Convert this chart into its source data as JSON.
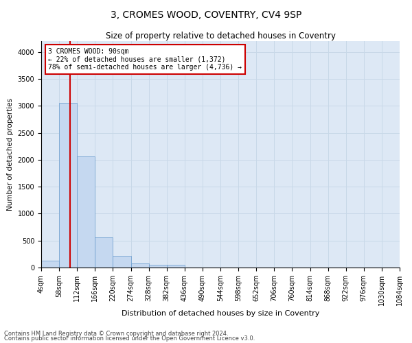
{
  "title": "3, CROMES WOOD, COVENTRY, CV4 9SP",
  "subtitle": "Size of property relative to detached houses in Coventry",
  "xlabel": "Distribution of detached houses by size in Coventry",
  "ylabel": "Number of detached properties",
  "bin_labels": [
    "4sqm",
    "58sqm",
    "112sqm",
    "166sqm",
    "220sqm",
    "274sqm",
    "328sqm",
    "382sqm",
    "436sqm",
    "490sqm",
    "544sqm",
    "598sqm",
    "652sqm",
    "706sqm",
    "760sqm",
    "814sqm",
    "868sqm",
    "922sqm",
    "976sqm",
    "1030sqm",
    "1084sqm"
  ],
  "bar_values": [
    130,
    3060,
    2060,
    560,
    215,
    75,
    50,
    50,
    0,
    0,
    0,
    0,
    0,
    0,
    0,
    0,
    0,
    0,
    0,
    0
  ],
  "bar_color": "#c5d8f0",
  "bar_edge_color": "#6699cc",
  "grid_color": "#c8d8e8",
  "background_color": "#dde8f5",
  "vline_color": "#cc0000",
  "annotation_title": "3 CROMES WOOD: 90sqm",
  "annotation_line1": "← 22% of detached houses are smaller (1,372)",
  "annotation_line2": "78% of semi-detached houses are larger (4,736) →",
  "annotation_box_color": "#ffffff",
  "annotation_border_color": "#cc0000",
  "ylim": [
    0,
    4200
  ],
  "yticks": [
    0,
    500,
    1000,
    1500,
    2000,
    2500,
    3000,
    3500,
    4000
  ],
  "footnote1": "Contains HM Land Registry data © Crown copyright and database right 2024.",
  "footnote2": "Contains public sector information licensed under the Open Government Licence v3.0.",
  "title_fontsize": 10,
  "subtitle_fontsize": 8.5,
  "xlabel_fontsize": 8,
  "ylabel_fontsize": 7.5,
  "tick_fontsize": 7,
  "annot_fontsize": 7,
  "footnote_fontsize": 6
}
